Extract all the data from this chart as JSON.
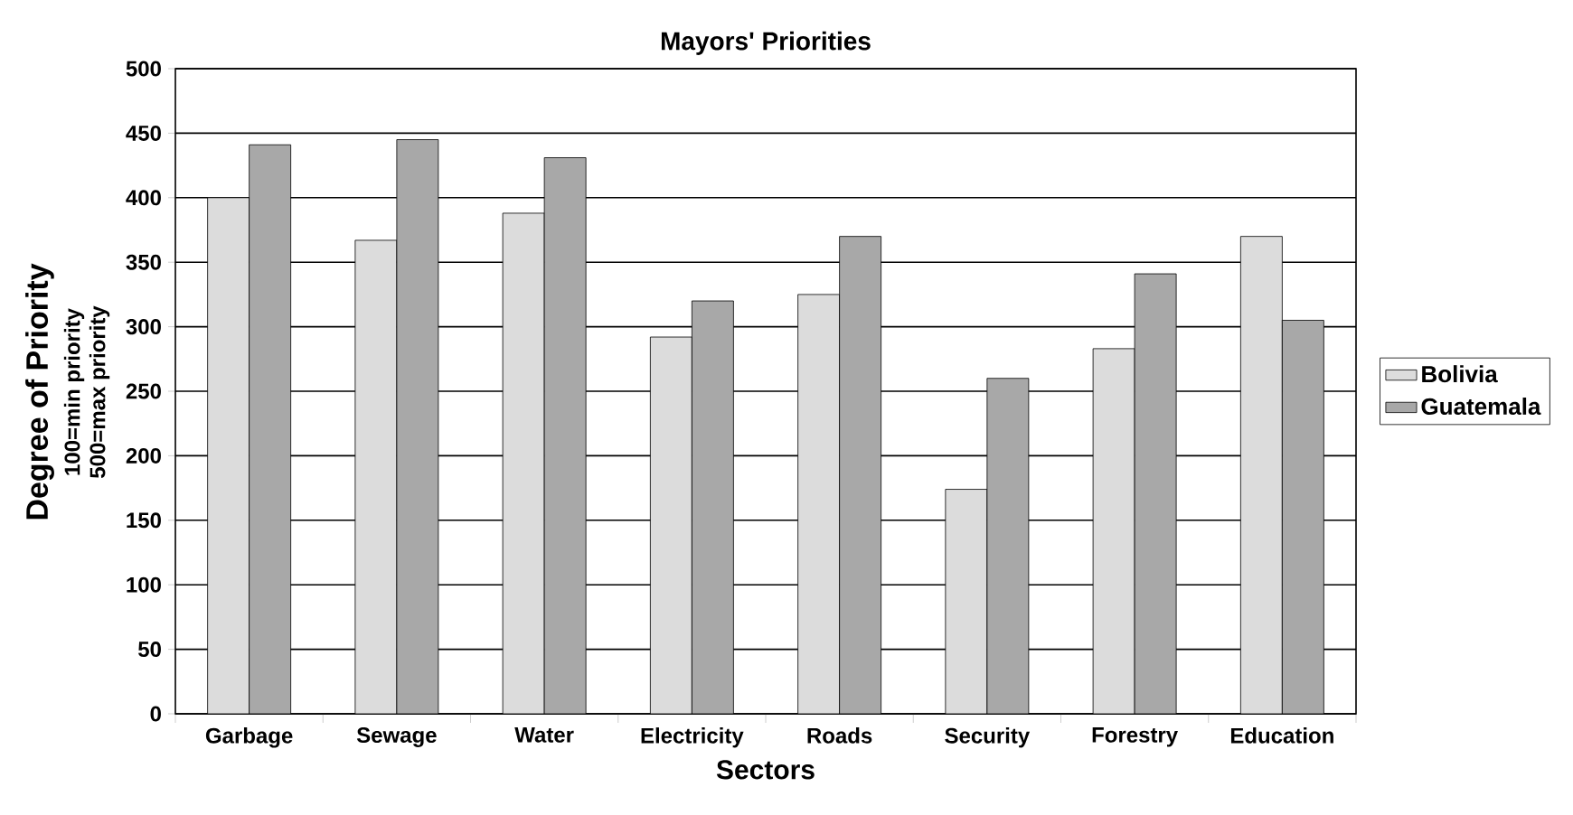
{
  "chart_data": {
    "type": "bar",
    "title": "Mayors' Priorities",
    "xlabel": "Sectors",
    "ylabel": "Degree of Priority",
    "annotations": [
      "100=min priority",
      "500=max priority"
    ],
    "categories": [
      "Garbage",
      "Sewage",
      "Water",
      "Electricity",
      "Roads",
      "Security",
      "Forestry",
      "Education"
    ],
    "series": [
      {
        "name": "Bolivia",
        "color": "#dcdcdc",
        "values": [
          400,
          367,
          388,
          292,
          325,
          174,
          283,
          370
        ]
      },
      {
        "name": "Guatemala",
        "color": "#a8a8a8",
        "values": [
          441,
          445,
          431,
          320,
          370,
          260,
          341,
          305
        ]
      }
    ],
    "ylim": [
      0,
      500
    ],
    "yticks": [
      0,
      50,
      100,
      150,
      200,
      250,
      300,
      350,
      400,
      450,
      500
    ],
    "grid": "y",
    "legend": "right"
  }
}
